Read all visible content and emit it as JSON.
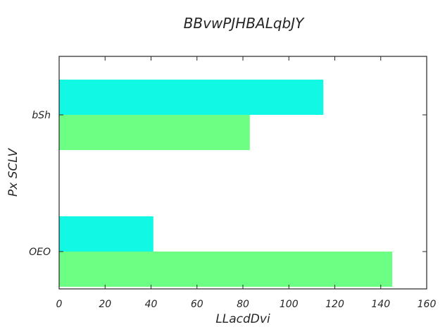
{
  "chart_data": {
    "type": "bar",
    "orientation": "horizontal",
    "title": "BBvwPJHBALqbJY",
    "xlabel": "LLacdDvi",
    "ylabel": "Px SCLV",
    "categories": [
      "OEO",
      "bSh"
    ],
    "series": [
      {
        "values": [
          145,
          83
        ],
        "color": "#6dff84"
      },
      {
        "values": [
          41,
          115
        ],
        "color": "#11f9e5"
      }
    ],
    "xlim": [
      0,
      160
    ],
    "xticks": [
      0,
      20,
      40,
      60,
      80,
      100,
      120,
      140,
      160
    ],
    "grid": false,
    "legend": "none"
  }
}
